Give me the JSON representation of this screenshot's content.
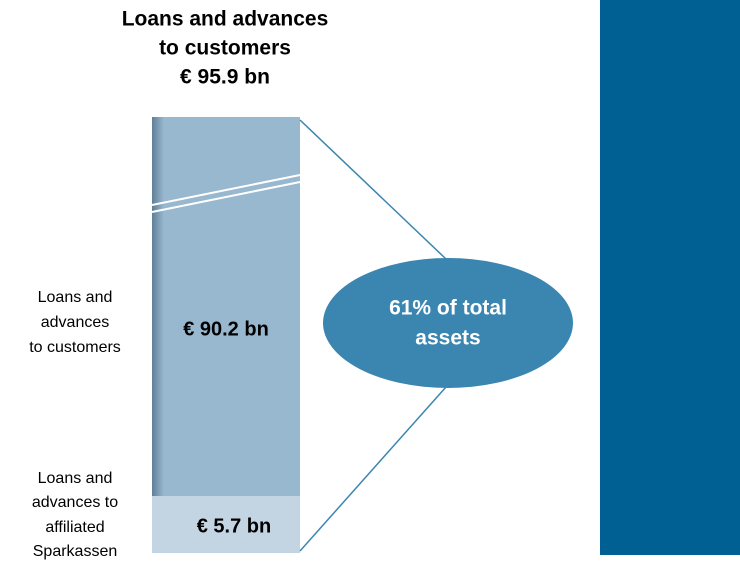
{
  "title": [
    "Loans and advances",
    "to customers",
    "€ 95.9 bn"
  ],
  "segments": [
    {
      "label": [
        "Loans and",
        "advances",
        "to customers"
      ],
      "value": "€ 90.2 bn"
    },
    {
      "label": [
        "Loans and",
        "advances to",
        "affiliated",
        "Sparkassen"
      ],
      "value": "€ 5.7 bn"
    }
  ],
  "callout": [
    "61% of total",
    "assets"
  ]
}
